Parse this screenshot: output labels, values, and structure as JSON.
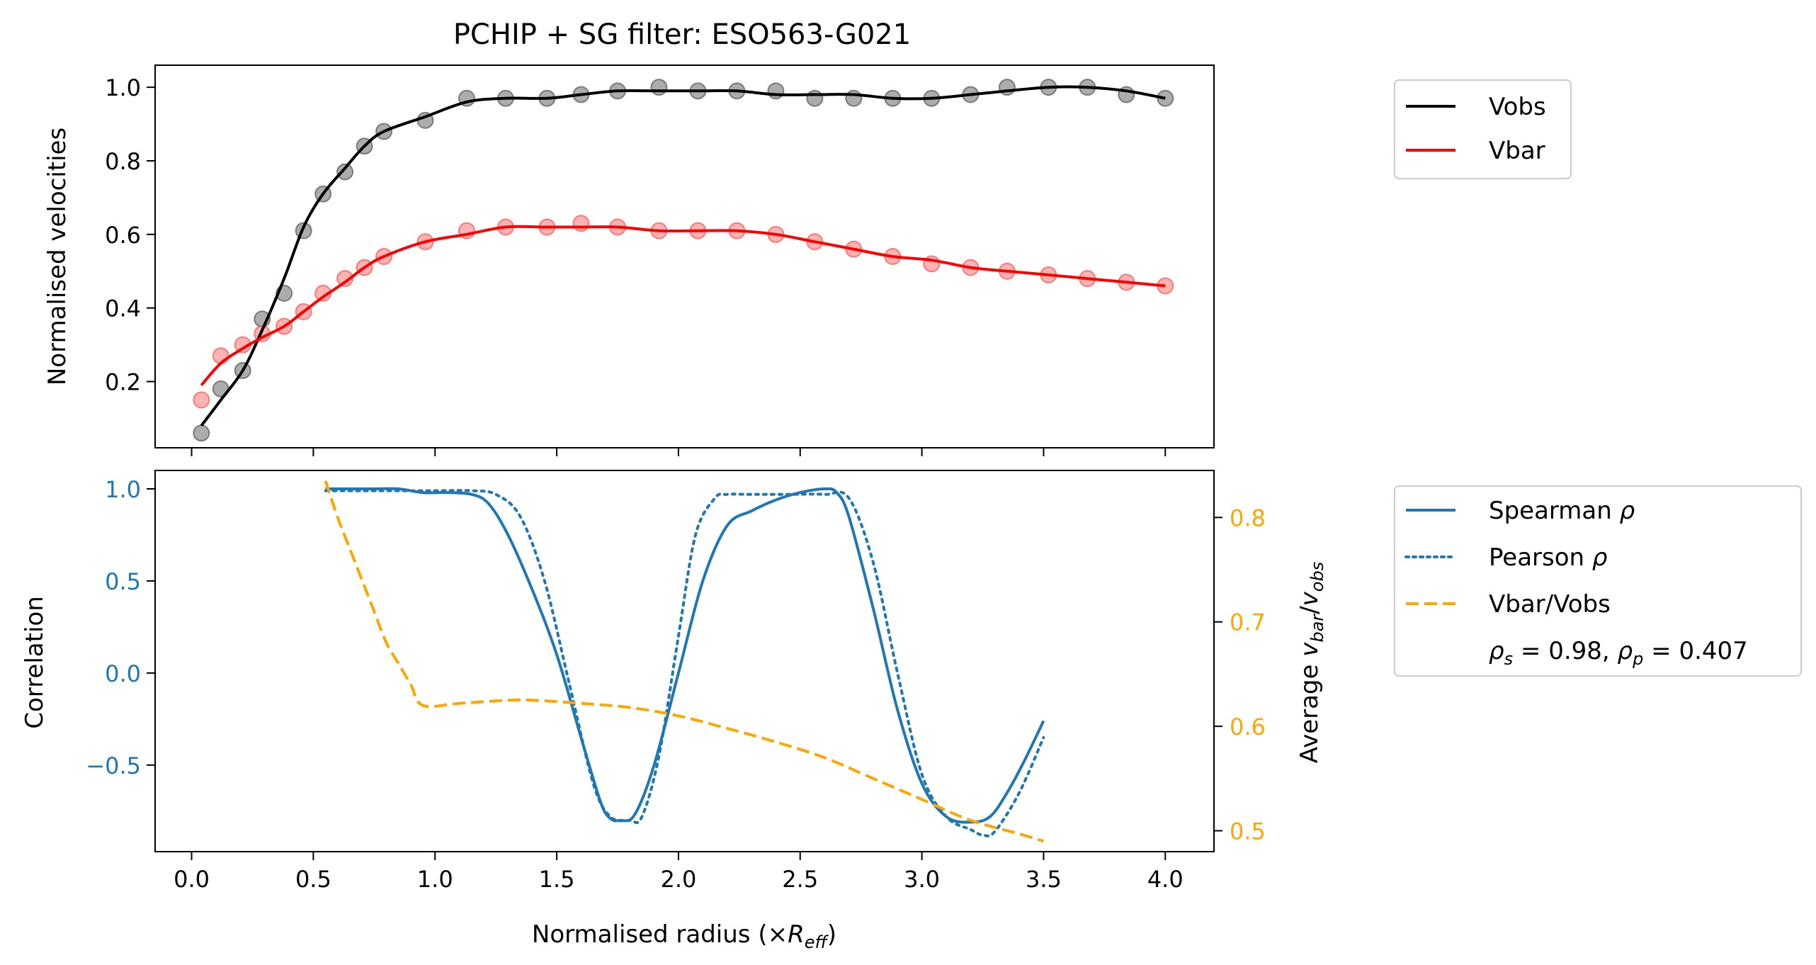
{
  "figure": {
    "title": "PCHIP + SG filter: ESO563-G021",
    "xlabel_prefix": "Normalised radius (×",
    "xlabel_symbol": "R",
    "xlabel_sub": "eff",
    "xlabel_suffix": ")"
  },
  "colors": {
    "vobs": "#000000",
    "vbar": "#ff0000",
    "spearman": "#1f77b4",
    "pearson": "#1f77b4",
    "ratio": "#ffa500",
    "vobs_points": "#808080",
    "vbar_points": "#ff8080"
  },
  "legend_top": {
    "items": [
      {
        "label": "Vobs",
        "series": "vobs"
      },
      {
        "label": "Vbar",
        "series": "vbar"
      }
    ]
  },
  "legend_bottom": {
    "spearman_label": "Spearman ",
    "pearson_label": "Pearson ",
    "rho": "ρ",
    "ratio_label": "Vbar/Vobs",
    "stat_rs_sub": "s",
    "stat_rs_val": " = 0.98, ",
    "stat_rp_sub": "p",
    "stat_rp_val": " = 0.407"
  },
  "chart_data": [
    {
      "type": "line",
      "title": "PCHIP + SG filter: ESO563-G021",
      "ylabel": "Normalised velocities",
      "xlim": [
        -0.15,
        4.2
      ],
      "ylim": [
        0.02,
        1.06
      ],
      "xticks": [
        0.0,
        0.5,
        1.0,
        1.5,
        2.0,
        2.5,
        3.0,
        3.5,
        4.0
      ],
      "yticks": [
        0.2,
        0.4,
        0.6,
        0.8,
        1.0
      ],
      "yticklabels": [
        "0.2",
        "0.4",
        "0.6",
        "0.8",
        "1.0"
      ],
      "legend": "outside-right-top",
      "scatter": {
        "vobs": {
          "x": [
            0.04,
            0.12,
            0.21,
            0.29,
            0.38,
            0.46,
            0.54,
            0.63,
            0.71,
            0.79,
            0.96,
            1.13,
            1.29,
            1.46,
            1.6,
            1.75,
            1.92,
            2.08,
            2.24,
            2.4,
            2.56,
            2.72,
            2.88,
            3.04,
            3.2,
            3.35,
            3.52,
            3.68,
            3.84,
            4.0
          ],
          "y": [
            0.06,
            0.18,
            0.23,
            0.37,
            0.44,
            0.61,
            0.71,
            0.77,
            0.84,
            0.88,
            0.91,
            0.97,
            0.97,
            0.97,
            0.98,
            0.99,
            1.0,
            0.99,
            0.99,
            0.99,
            0.97,
            0.97,
            0.97,
            0.97,
            0.98,
            1.0,
            1.0,
            1.0,
            0.98,
            0.97
          ]
        },
        "vbar": {
          "x": [
            0.04,
            0.12,
            0.21,
            0.29,
            0.38,
            0.46,
            0.54,
            0.63,
            0.71,
            0.79,
            0.96,
            1.13,
            1.29,
            1.46,
            1.6,
            1.75,
            1.92,
            2.08,
            2.24,
            2.4,
            2.56,
            2.72,
            2.88,
            3.04,
            3.2,
            3.35,
            3.52,
            3.68,
            3.84,
            4.0
          ],
          "y": [
            0.15,
            0.27,
            0.3,
            0.33,
            0.35,
            0.39,
            0.44,
            0.48,
            0.51,
            0.54,
            0.58,
            0.61,
            0.62,
            0.62,
            0.63,
            0.62,
            0.61,
            0.61,
            0.61,
            0.6,
            0.58,
            0.56,
            0.54,
            0.52,
            0.51,
            0.5,
            0.49,
            0.48,
            0.47,
            0.46
          ]
        }
      },
      "series": [
        {
          "name": "Vobs",
          "color_key": "vobs",
          "x": [
            0.04,
            0.12,
            0.21,
            0.29,
            0.38,
            0.46,
            0.54,
            0.63,
            0.71,
            0.79,
            0.96,
            1.13,
            1.29,
            1.46,
            1.6,
            1.75,
            1.92,
            2.08,
            2.24,
            2.4,
            2.56,
            2.72,
            2.88,
            3.04,
            3.2,
            3.35,
            3.52,
            3.68,
            3.84,
            4.0
          ],
          "y": [
            0.08,
            0.15,
            0.23,
            0.34,
            0.48,
            0.62,
            0.71,
            0.78,
            0.84,
            0.88,
            0.92,
            0.96,
            0.97,
            0.97,
            0.98,
            0.99,
            0.99,
            0.99,
            0.99,
            0.98,
            0.98,
            0.98,
            0.97,
            0.97,
            0.98,
            0.99,
            1.0,
            1.0,
            0.99,
            0.97
          ]
        },
        {
          "name": "Vbar",
          "color_key": "vbar",
          "x": [
            0.04,
            0.12,
            0.21,
            0.29,
            0.38,
            0.46,
            0.54,
            0.63,
            0.71,
            0.79,
            0.96,
            1.13,
            1.29,
            1.46,
            1.6,
            1.75,
            1.92,
            2.08,
            2.24,
            2.4,
            2.56,
            2.72,
            2.88,
            3.04,
            3.2,
            3.35,
            3.52,
            3.68,
            3.84,
            4.0
          ],
          "y": [
            0.19,
            0.25,
            0.29,
            0.32,
            0.35,
            0.39,
            0.43,
            0.47,
            0.51,
            0.54,
            0.58,
            0.6,
            0.62,
            0.62,
            0.62,
            0.62,
            0.61,
            0.61,
            0.61,
            0.6,
            0.58,
            0.56,
            0.54,
            0.53,
            0.51,
            0.5,
            0.49,
            0.48,
            0.47,
            0.46
          ]
        }
      ]
    },
    {
      "type": "line",
      "ylabel": "Correlation",
      "y2label_prefix": "Average ",
      "y2label_v1": "v",
      "y2label_sub1": "bar",
      "y2label_slash": "/",
      "y2label_v2": "v",
      "y2label_sub2": "obs",
      "xlabel": "Normalised radius (×Reff)",
      "xlim": [
        -0.15,
        4.2
      ],
      "ylim": [
        -0.97,
        1.1
      ],
      "y2lim": [
        0.48,
        0.845
      ],
      "xticks": [
        0.0,
        0.5,
        1.0,
        1.5,
        2.0,
        2.5,
        3.0,
        3.5,
        4.0
      ],
      "xticklabels": [
        "0.0",
        "0.5",
        "1.0",
        "1.5",
        "2.0",
        "2.5",
        "3.0",
        "3.5",
        "4.0"
      ],
      "yticks": [
        1.0,
        0.5,
        0.0,
        -0.5
      ],
      "yticklabels": [
        "1.0",
        "0.5",
        "0.0",
        "−0.5"
      ],
      "y2ticks": [
        0.8,
        0.7,
        0.6,
        0.5
      ],
      "y2ticklabels": [
        "0.8",
        "0.7",
        "0.6",
        "0.5"
      ],
      "legend": "outside-right-top",
      "series": [
        {
          "name": "Spearman ρ",
          "style": "solid",
          "color_key": "spearman",
          "axis": "left",
          "x": [
            0.55,
            0.65,
            0.75,
            0.85,
            0.95,
            1.05,
            1.15,
            1.22,
            1.3,
            1.4,
            1.5,
            1.6,
            1.68,
            1.72,
            1.76,
            1.82,
            1.9,
            2.0,
            2.1,
            2.2,
            2.3,
            2.4,
            2.5,
            2.6,
            2.65,
            2.7,
            2.8,
            2.9,
            3.0,
            3.1,
            3.2,
            3.28,
            3.35,
            3.42,
            3.5
          ],
          "y": [
            1.0,
            1.0,
            1.0,
            1.0,
            0.98,
            0.98,
            0.97,
            0.92,
            0.75,
            0.45,
            0.1,
            -0.35,
            -0.7,
            -0.79,
            -0.8,
            -0.77,
            -0.5,
            0.0,
            0.5,
            0.8,
            0.88,
            0.94,
            0.98,
            1.0,
            0.98,
            0.85,
            0.35,
            -0.2,
            -0.6,
            -0.78,
            -0.81,
            -0.78,
            -0.65,
            -0.48,
            -0.26
          ]
        },
        {
          "name": "Pearson ρ",
          "style": "dotted",
          "color_key": "pearson",
          "axis": "left",
          "x": [
            0.55,
            0.7,
            0.85,
            1.0,
            1.15,
            1.25,
            1.35,
            1.45,
            1.55,
            1.65,
            1.72,
            1.8,
            1.85,
            1.92,
            2.0,
            2.07,
            2.15,
            2.2,
            2.3,
            2.45,
            2.6,
            2.7,
            2.8,
            2.9,
            3.0,
            3.1,
            3.2,
            3.25,
            3.3,
            3.4,
            3.5
          ],
          "y": [
            0.99,
            0.99,
            0.99,
            0.99,
            0.99,
            0.97,
            0.85,
            0.5,
            -0.05,
            -0.6,
            -0.78,
            -0.8,
            -0.78,
            -0.45,
            0.2,
            0.75,
            0.95,
            0.97,
            0.97,
            0.97,
            0.97,
            0.95,
            0.6,
            0.0,
            -0.55,
            -0.78,
            -0.85,
            -0.88,
            -0.86,
            -0.65,
            -0.35
          ]
        },
        {
          "name": "Vbar/Vobs",
          "style": "dashed",
          "color_key": "ratio",
          "axis": "right",
          "x": [
            0.55,
            0.6,
            0.65,
            0.7,
            0.75,
            0.8,
            0.85,
            0.9,
            0.95,
            1.1,
            1.3,
            1.4,
            1.6,
            1.8,
            2.0,
            2.2,
            2.4,
            2.6,
            2.8,
            3.0,
            3.2,
            3.4,
            3.5
          ],
          "y": [
            0.835,
            0.8,
            0.77,
            0.74,
            0.71,
            0.68,
            0.66,
            0.64,
            0.62,
            0.622,
            0.625,
            0.625,
            0.622,
            0.618,
            0.61,
            0.598,
            0.585,
            0.57,
            0.55,
            0.53,
            0.51,
            0.497,
            0.49
          ]
        }
      ]
    }
  ]
}
